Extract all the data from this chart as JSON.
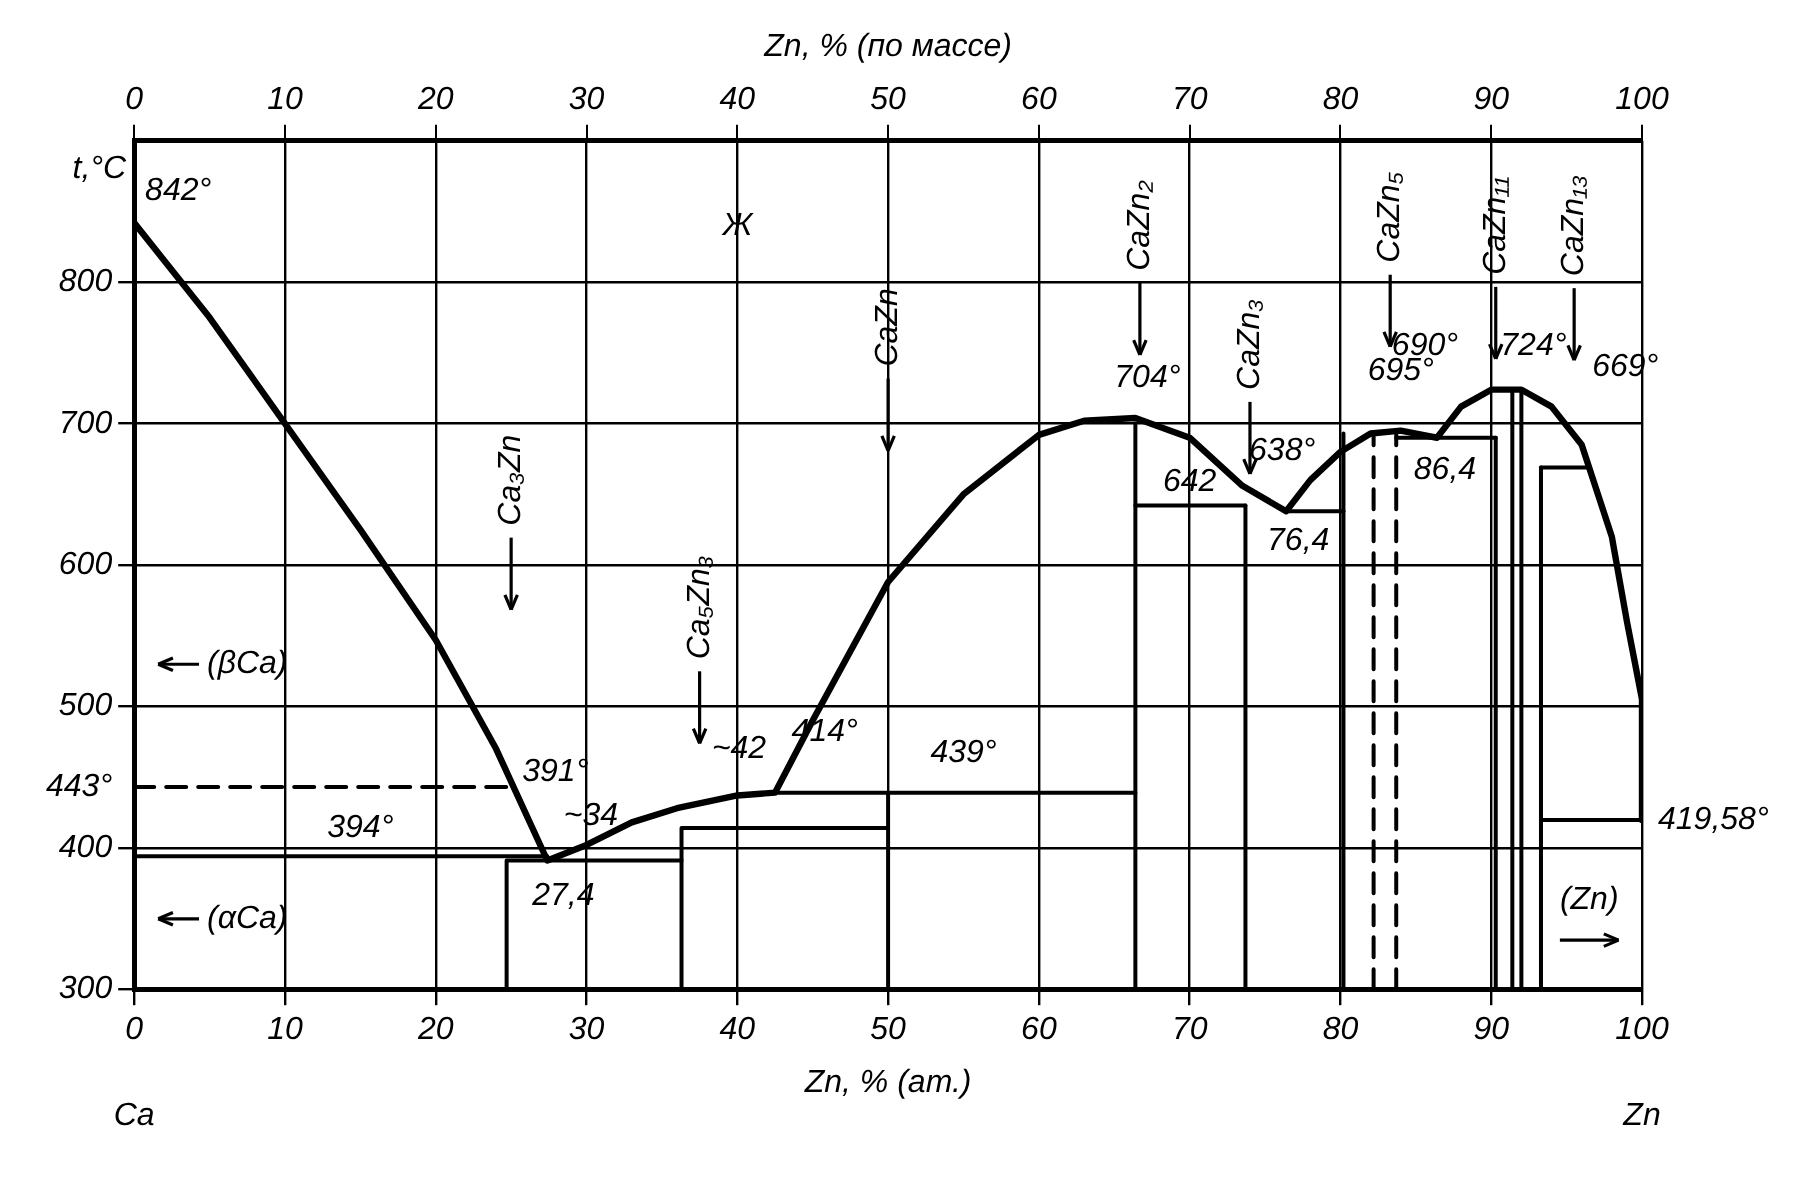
{
  "chart_data": {
    "type": "line",
    "xlabel": "Zn, % (ат.)",
    "x2label": "Zn, % (по массе)",
    "ylabel": "t,°C",
    "xlim": [
      0,
      100
    ],
    "xticks": [
      0,
      10,
      20,
      30,
      40,
      50,
      60,
      70,
      80,
      90,
      100
    ],
    "x2lim": [
      0,
      100
    ],
    "x2ticks": [
      0,
      10,
      20,
      30,
      40,
      50,
      60,
      70,
      80,
      90,
      100
    ],
    "ylim": [
      300,
      900
    ],
    "yticks": [
      300,
      400,
      {
        "value": 443,
        "label": "443°"
      },
      500,
      600,
      700,
      800
    ],
    "grid": true,
    "legend": false,
    "marker": "none",
    "line_style": "solid",
    "series": [
      {
        "color": "#000000",
        "x": [
          0,
          5,
          10,
          15,
          20,
          24,
          27.4,
          30,
          33,
          36,
          40,
          42.5,
          45,
          50,
          55,
          60,
          63,
          66.4,
          70,
          73.5,
          76.4,
          78,
          80,
          82,
          84,
          86.4,
          88,
          90,
          92,
          94,
          96,
          98,
          99,
          100,
          100
        ],
        "values": [
          842,
          775,
          700,
          625,
          547,
          470,
          391,
          402,
          418,
          428,
          437,
          439,
          490,
          588,
          650,
          692,
          702,
          704,
          690,
          656,
          638,
          660,
          680,
          693,
          695,
          690,
          712,
          724,
          724,
          712,
          685,
          620,
          560,
          505,
          419.58
        ]
      },
      {
        "color": "#000000",
        "x": [
          0,
          27.4
        ],
        "values": [
          394,
          394
        ]
      },
      {
        "color": "#000000",
        "x": [
          0,
          25
        ],
        "values": [
          443,
          443
        ],
        "line_style": "dashed"
      },
      {
        "color": "#000000",
        "x": [
          24.7,
          24.7,
          36.3
        ],
        "values": [
          300,
          391,
          391
        ]
      },
      {
        "color": "#000000",
        "x": [
          36.3,
          36.3,
          50
        ],
        "values": [
          300,
          414,
          414
        ]
      },
      {
        "color": "#000000",
        "x": [
          50,
          50
        ],
        "values": [
          300,
          439
        ]
      },
      {
        "color": "#000000",
        "x": [
          42.5,
          66.4
        ],
        "values": [
          439,
          439
        ]
      },
      {
        "color": "#000000",
        "x": [
          66.4,
          66.4
        ],
        "values": [
          300,
          700
        ]
      },
      {
        "color": "#000000",
        "x": [
          66.4,
          73.7
        ],
        "values": [
          642,
          642
        ]
      },
      {
        "color": "#000000",
        "x": [
          73.7,
          73.7
        ],
        "values": [
          300,
          642
        ]
      },
      {
        "color": "#000000",
        "x": [
          76.4,
          80.2
        ],
        "values": [
          638,
          638
        ]
      },
      {
        "color": "#000000",
        "x": [
          80.2,
          80.2
        ],
        "values": [
          300,
          693
        ]
      },
      {
        "color": "#000000",
        "x": [
          82.2,
          82.2
        ],
        "values": [
          300,
          693
        ],
        "line_style": "dashed"
      },
      {
        "color": "#000000",
        "x": [
          83.7,
          83.7
        ],
        "values": [
          300,
          695
        ],
        "line_style": "dashed"
      },
      {
        "color": "#000000",
        "x": [
          83.7,
          90.3
        ],
        "values": [
          690,
          690
        ]
      },
      {
        "color": "#000000",
        "x": [
          90.3,
          90.3
        ],
        "values": [
          300,
          690
        ]
      },
      {
        "color": "#000000",
        "x": [
          91.4,
          91.4
        ],
        "values": [
          300,
          724
        ]
      },
      {
        "color": "#000000",
        "x": [
          92,
          92
        ],
        "values": [
          300,
          724
        ]
      },
      {
        "color": "#000000",
        "x": [
          93.3,
          93.3
        ],
        "values": [
          300,
          669
        ]
      },
      {
        "color": "#000000",
        "x": [
          93.3,
          96.5
        ],
        "values": [
          669,
          669
        ]
      },
      {
        "color": "#000000",
        "x": [
          93.3,
          100
        ],
        "values": [
          419.58,
          419.58
        ]
      }
    ],
    "annotations": [
      {
        "text": "842°",
        "x": 0,
        "y": 842
      },
      {
        "text": "704°",
        "x": 66.4,
        "y": 704
      },
      {
        "text": "642",
        "x": 70,
        "y": 642
      },
      {
        "text": "638°",
        "x": 76.4,
        "y": 638
      },
      {
        "text": "76,4",
        "x": 76.4,
        "y": 638
      },
      {
        "text": "695°",
        "x": 84,
        "y": 695
      },
      {
        "text": "690°",
        "x": 86.4,
        "y": 690
      },
      {
        "text": "724°",
        "x": 92,
        "y": 724
      },
      {
        "text": "669°",
        "x": 96.5,
        "y": 669
      },
      {
        "text": "86,4",
        "x": 86.4,
        "y": 690
      },
      {
        "text": "391°",
        "x": 27.4,
        "y": 391
      },
      {
        "text": "~34",
        "x": 34,
        "y": 391
      },
      {
        "text": "27,4",
        "x": 27.4,
        "y": 391
      },
      {
        "text": "394°",
        "x": 15,
        "y": 394
      },
      {
        "text": "~42",
        "x": 42.5,
        "y": 439
      },
      {
        "text": "414°",
        "x": 45,
        "y": 414
      },
      {
        "text": "439°",
        "x": 55,
        "y": 439
      },
      {
        "text": "419,58°",
        "x": 100,
        "y": 419.58
      },
      "Ж",
      "Ca₃Zn",
      "Ca₅Zn₃",
      "CaZn",
      "CaZn₂",
      "CaZn₃",
      "CaZn₅",
      "CaZn₁₁",
      "CaZn₁₃",
      "(βCa)",
      "(αCa)",
      "(Zn)",
      "Ca",
      "Zn"
    ]
  }
}
